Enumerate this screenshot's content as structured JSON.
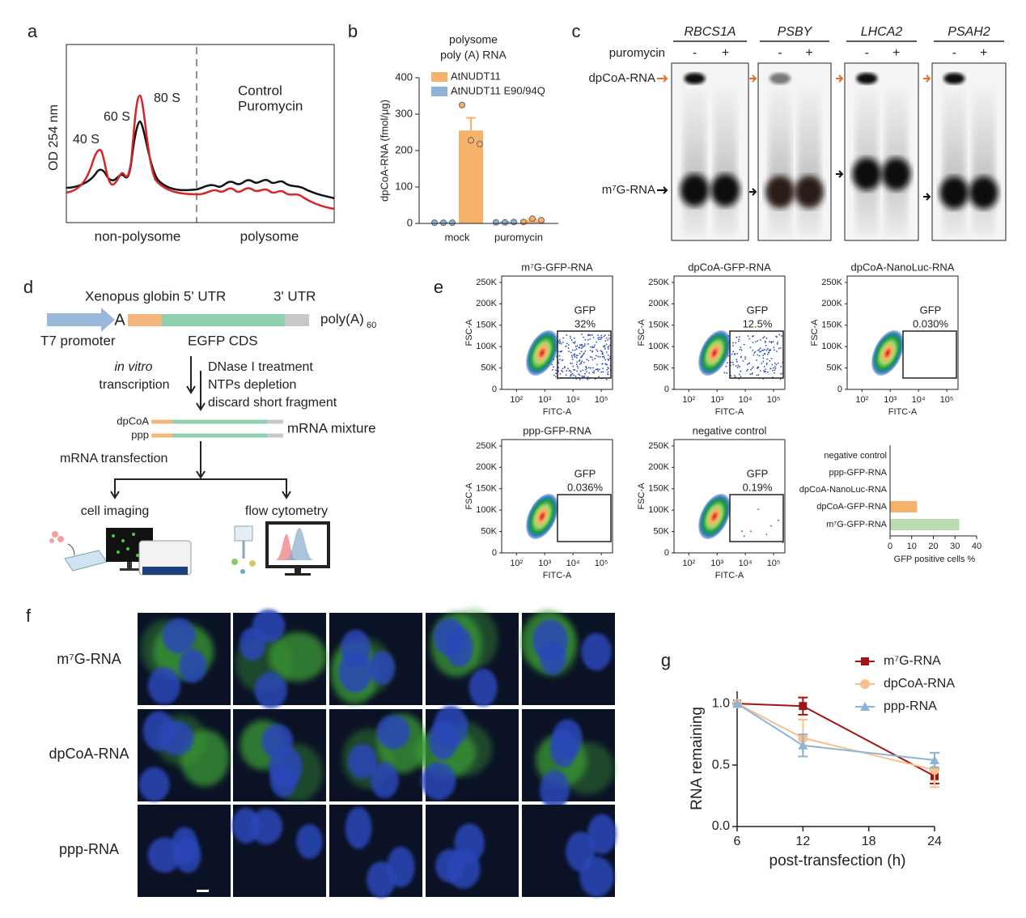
{
  "panel_labels": [
    "a",
    "b",
    "c",
    "d",
    "e",
    "f",
    "g"
  ],
  "profile": {
    "y_label": "OD 254 nm",
    "peaks": [
      "40 S",
      "60 S",
      "80 S"
    ],
    "legend": [
      {
        "name": "Control",
        "color": "#111111"
      },
      {
        "name": "Puromycin",
        "color": "#d62728"
      }
    ],
    "regions": [
      "non-polysome",
      "polysome"
    ]
  },
  "gel": {
    "genes": [
      "RBCS1A",
      "PSBY",
      "LHCA2",
      "PSAH2"
    ],
    "treatment": "puromycin",
    "lanes": [
      "-",
      "+"
    ],
    "bands": [
      {
        "name": "dpCoA-RNA",
        "color": "#e0702a"
      },
      {
        "name": "m⁷G-RNA",
        "color": "#111111"
      }
    ]
  },
  "construct": {
    "utr5": "Xenopus globin 5' UTR",
    "utr3": "3' UTR",
    "start": "A",
    "polyA": "poly(A)",
    "polyA_length": 60,
    "promoter": "T7 promoter",
    "cds": "EGFP CDS",
    "step1": [
      "in vitro",
      "transcription"
    ],
    "step2": [
      "DNase I treatment",
      "NTPs depletion",
      "discard short fragment"
    ],
    "caps": [
      "dpCoA",
      "ppp"
    ],
    "mixture": "mRNA mixture",
    "transfection": "mRNA transfection",
    "readouts": [
      "cell imaging",
      "flow cytometry"
    ]
  },
  "flow": {
    "x_label": "FITC-A",
    "y_label": "FSC-A",
    "gate": "GFP",
    "xscale": "log",
    "xlim": [
      30,
      250000
    ],
    "xticks": [
      {
        "value": 100,
        "label": "10²"
      },
      {
        "value": 1000,
        "label": "10³"
      },
      {
        "value": 10000,
        "label": "10⁴"
      },
      {
        "value": 100000,
        "label": "10⁵"
      }
    ],
    "ylim": [
      0,
      265000
    ],
    "yticks": [
      0,
      {
        "value": 50000,
        "label": "50K"
      },
      {
        "value": 100000,
        "label": "100K"
      },
      {
        "value": 150000,
        "label": "150K"
      },
      {
        "value": 200000,
        "label": "200K"
      },
      {
        "value": 250000,
        "label": "250K"
      }
    ],
    "plots": [
      {
        "title": "m⁷G-GFP-RNA",
        "gate_percent": "32%"
      },
      {
        "title": "dpCoA-GFP-RNA",
        "gate_percent": "12.5%"
      },
      {
        "title": "dpCoA-NanoLuc-RNA",
        "gate_percent": "0.030%"
      },
      {
        "title": "ppp-GFP-RNA",
        "gate_percent": "0.036%"
      },
      {
        "title": "negative control",
        "gate_percent": "0.19%"
      }
    ]
  },
  "imaging": {
    "rows": [
      "m⁷G-RNA",
      "dpCoA-RNA",
      "ppp-RNA"
    ]
  },
  "chart_data": [
    {
      "type": "bar",
      "title": [
        "polysome",
        "poly (A) RNA"
      ],
      "y_label": "dpCoA-RNA (fmol/μg)",
      "categories": [
        "mock",
        "puromycin"
      ],
      "ylim": [
        0,
        400
      ],
      "yticks": [
        0,
        100,
        200,
        300,
        400
      ],
      "series": [
        {
          "name": "AtNUDT11",
          "color": "#f6b26b",
          "values": [
            255,
            9
          ],
          "errors": [
            35,
            3
          ],
          "points": [
            [
              325,
              228,
              218
            ],
            [
              4,
              13,
              9
            ]
          ]
        },
        {
          "name": "AtNUDT11 E90/94Q",
          "color": "#8db4d6",
          "values": [
            2,
            3
          ],
          "errors": [
            0,
            1
          ],
          "points": [
            [
              2,
              2,
              2
            ],
            [
              3,
              3,
              4
            ]
          ]
        }
      ]
    },
    {
      "type": "bar",
      "orientation": "horizontal",
      "x_label": "GFP positive cells %",
      "categories": [
        "negative control",
        "ppp-GFP-RNA",
        "dpCoA-NanoLuc-RNA",
        "dpCoA-GFP-RNA",
        "m⁷G-GFP-RNA"
      ],
      "values": [
        0.19,
        0.036,
        0.03,
        12.5,
        32
      ],
      "colors": [
        "#999999",
        "#999999",
        "#999999",
        "#f6b26b",
        "#b9dbb0"
      ],
      "xlim": [
        0,
        40
      ],
      "xticks": [
        0,
        10,
        20,
        30,
        40
      ]
    },
    {
      "type": "line",
      "x_label": "post-transfection (h)",
      "y_label": "RNA remaining",
      "x": [
        6,
        12,
        24
      ],
      "xlim": [
        6,
        24
      ],
      "xticks": [
        6,
        12,
        18,
        24
      ],
      "ylim": [
        0,
        1.1
      ],
      "yticks": [
        {
          "value": 0,
          "label": "0.0"
        },
        0.5,
        {
          "value": 1,
          "label": "1.0"
        }
      ],
      "series": [
        {
          "name": "m⁷G-RNA",
          "color": "#a31515",
          "marker": "square",
          "values": [
            1,
            0.98,
            0.41
          ],
          "errors": [
            0,
            0.07,
            0.06
          ]
        },
        {
          "name": "dpCoA-RNA",
          "color": "#f8c08a",
          "marker": "circle",
          "values": [
            1,
            0.72,
            0.46
          ],
          "errors": [
            0,
            0.15,
            0.14
          ]
        },
        {
          "name": "ppp-RNA",
          "color": "#8db4d6",
          "marker": "triangle",
          "values": [
            1,
            0.66,
            0.54
          ],
          "errors": [
            0,
            0.09,
            0.06
          ]
        }
      ]
    }
  ]
}
